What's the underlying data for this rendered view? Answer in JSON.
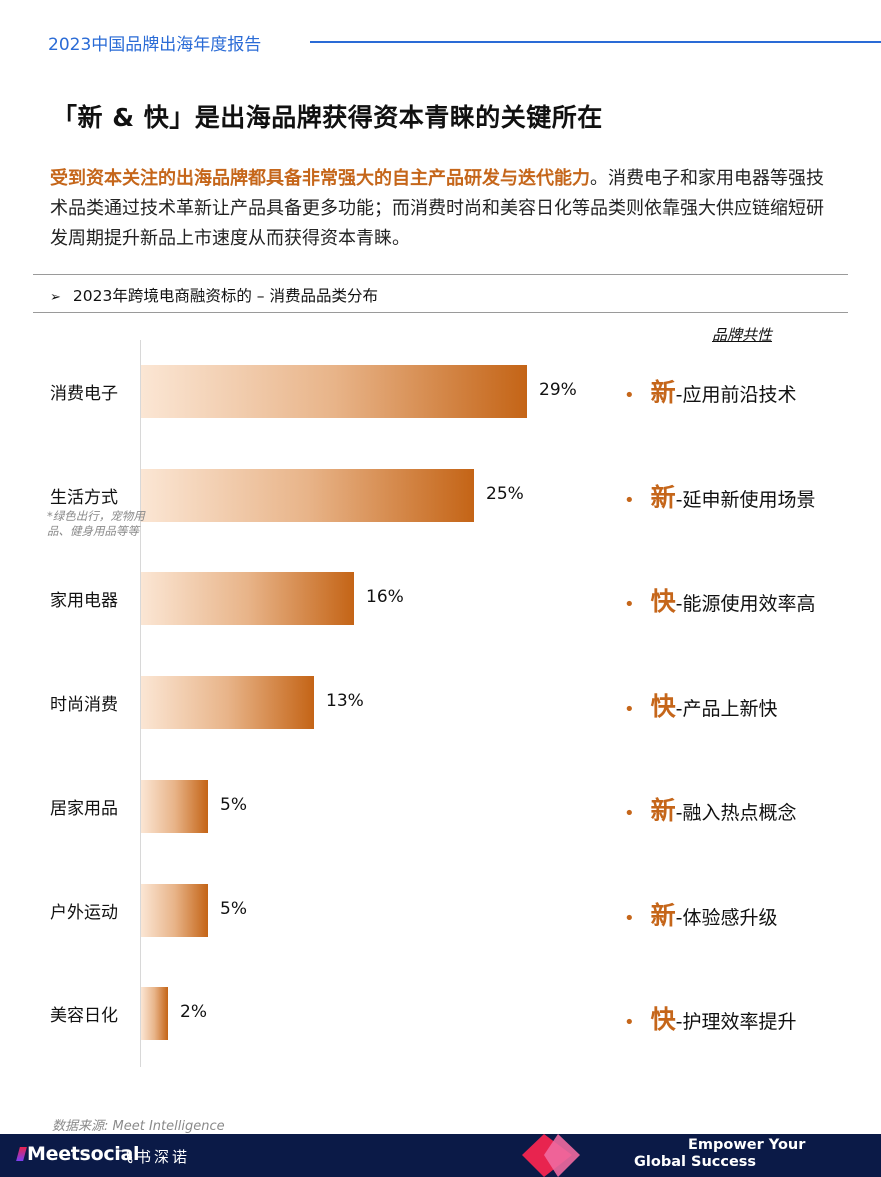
{
  "header": {
    "report_title": "2023中国品牌出海年度报告"
  },
  "headline": "「新 & 快」是出海品牌获得资本青睐的关键所在",
  "lead": {
    "highlight": "受到资本关注的出海品牌都具备非常强大的自主产品研发与迭代能力",
    "rest": "。消费电子和家用电器等强技术品类通过技术革新让产品具备更多功能；而消费时尚和美容日化等品类则依靠强大供应链缩短研发周期提升新品上市速度从而获得资本青睐。"
  },
  "section": {
    "bullet": "➢",
    "title": "2023年跨境电商融资标的 – 消费品品类分布"
  },
  "traits_heading": "品牌共性",
  "chart_data": {
    "type": "bar",
    "orientation": "horizontal",
    "title": "2023年跨境电商融资标的 – 消费品品类分布",
    "categories": [
      "消费电子",
      "生活方式",
      "家用电器",
      "时尚消费",
      "居家用品",
      "户外运动",
      "美容日化"
    ],
    "values": [
      29,
      25,
      16,
      13,
      5,
      5,
      2
    ],
    "value_labels": [
      "29%",
      "25%",
      "16%",
      "13%",
      "5%",
      "5%",
      "2%"
    ],
    "unit": "%",
    "category_notes": {
      "生活方式": "*绿色出行，宠物用品、健身用品等等"
    },
    "xlim": [
      0,
      29
    ],
    "grid": false,
    "legend": "none",
    "bar_gradient": [
      "#fbe6d4",
      "#c46416"
    ]
  },
  "traits": [
    {
      "dot": "•",
      "keyword": "新",
      "desc": "-应用前沿技术"
    },
    {
      "dot": "•",
      "keyword": "新",
      "desc": "-延申新使用场景"
    },
    {
      "dot": "•",
      "keyword": "快",
      "desc": "-能源使用效率高"
    },
    {
      "dot": "•",
      "keyword": "快",
      "desc": "-产品上新快"
    },
    {
      "dot": "•",
      "keyword": "新",
      "desc": "-融入热点概念"
    },
    {
      "dot": "•",
      "keyword": "新",
      "desc": "-体验感升级"
    },
    {
      "dot": "•",
      "keyword": "快",
      "desc": "-护理效率提升"
    }
  ],
  "source": "数据来源: Meet Intelligence",
  "footer": {
    "brand": "Meetsocial",
    "brand_cn": "飞书深诺",
    "slogan_line1": "Empower Your",
    "slogan_line2": "Global Success",
    "colors": {
      "navy": "#0b1a47",
      "red": "#e8244f",
      "pink": "#f06aa0",
      "accent_orange": "#c5661a",
      "blue": "#2a6bd6"
    }
  }
}
